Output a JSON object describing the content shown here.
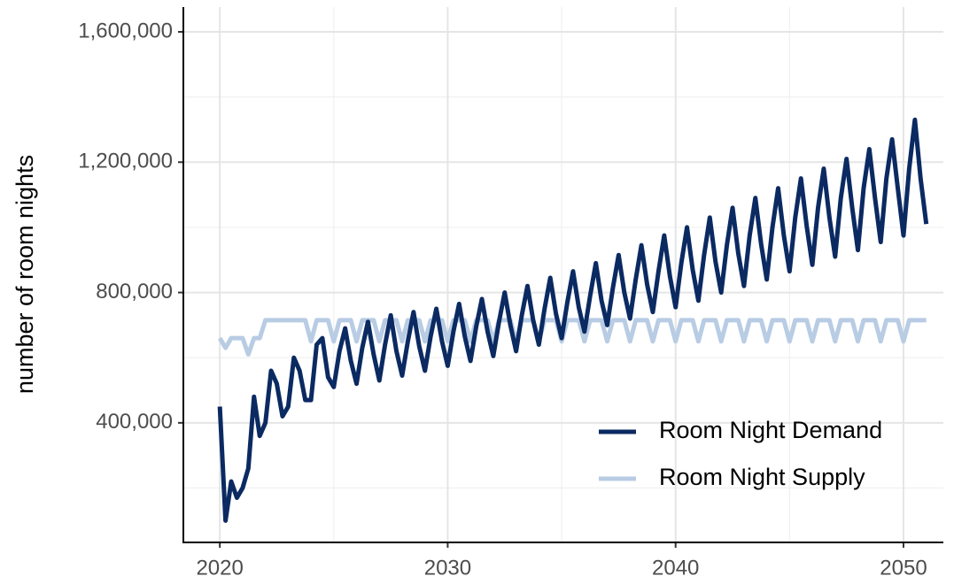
{
  "chart_data": {
    "type": "line",
    "ylabel": "number of room nights",
    "xlim": [
      2018.4,
      2051.75
    ],
    "ylim": [
      33000,
      1676000
    ],
    "xticks": [
      2020,
      2030,
      2040,
      2050
    ],
    "x_minor_ticks": [
      2025,
      2035,
      2045
    ],
    "yticks": [
      {
        "value": 400000,
        "label": "400,000"
      },
      {
        "value": 800000,
        "label": "800,000"
      },
      {
        "value": 1200000,
        "label": "1,200,000"
      },
      {
        "value": 1600000,
        "label": "1,600,000"
      }
    ],
    "y_minor_ticks": [
      200000,
      600000,
      1000000,
      1400000
    ],
    "grid": true,
    "legend": "bottom-right",
    "x": [
      2020,
      2020.25,
      2020.5,
      2020.75,
      2021,
      2021.25,
      2021.5,
      2021.75,
      2022,
      2022.25,
      2022.5,
      2022.75,
      2023,
      2023.25,
      2023.5,
      2023.75,
      2024,
      2024.25,
      2024.5,
      2024.75,
      2025,
      2025.25,
      2025.5,
      2025.75,
      2026,
      2026.25,
      2026.5,
      2026.75,
      2027,
      2027.25,
      2027.5,
      2027.75,
      2028,
      2028.25,
      2028.5,
      2028.75,
      2029,
      2029.25,
      2029.5,
      2029.75,
      2030,
      2030.25,
      2030.5,
      2030.75,
      2031,
      2031.25,
      2031.5,
      2031.75,
      2032,
      2032.25,
      2032.5,
      2032.75,
      2033,
      2033.25,
      2033.5,
      2033.75,
      2034,
      2034.25,
      2034.5,
      2034.75,
      2035,
      2035.25,
      2035.5,
      2035.75,
      2036,
      2036.25,
      2036.5,
      2036.75,
      2037,
      2037.25,
      2037.5,
      2037.75,
      2038,
      2038.25,
      2038.5,
      2038.75,
      2039,
      2039.25,
      2039.5,
      2039.75,
      2040,
      2040.25,
      2040.5,
      2040.75,
      2041,
      2041.25,
      2041.5,
      2041.75,
      2042,
      2042.25,
      2042.5,
      2042.75,
      2043,
      2043.25,
      2043.5,
      2043.75,
      2044,
      2044.25,
      2044.5,
      2044.75,
      2045,
      2045.25,
      2045.5,
      2045.75,
      2046,
      2046.25,
      2046.5,
      2046.75,
      2047,
      2047.25,
      2047.5,
      2047.75,
      2048,
      2048.25,
      2048.5,
      2048.75,
      2049,
      2049.25,
      2049.5,
      2049.75,
      2050,
      2050.25,
      2050.5,
      2050.75,
      2051
    ],
    "series": [
      {
        "name": "Room Night Demand",
        "color": "#0b2a62",
        "values": [
          450000,
          100000,
          220000,
          170000,
          200000,
          260000,
          480000,
          360000,
          400000,
          560000,
          520000,
          420000,
          450000,
          600000,
          560000,
          470000,
          470000,
          640000,
          660000,
          540000,
          510000,
          620000,
          690000,
          590000,
          520000,
          630000,
          710000,
          610000,
          530000,
          640000,
          730000,
          620000,
          545000,
          650000,
          740000,
          635000,
          560000,
          665000,
          750000,
          650000,
          575000,
          680000,
          765000,
          665000,
          590000,
          695000,
          780000,
          680000,
          605000,
          710000,
          800000,
          700000,
          620000,
          730000,
          820000,
          715000,
          640000,
          750000,
          845000,
          735000,
          660000,
          770000,
          865000,
          755000,
          680000,
          790000,
          890000,
          775000,
          700000,
          815000,
          915000,
          800000,
          720000,
          840000,
          945000,
          825000,
          740000,
          865000,
          975000,
          850000,
          755000,
          890000,
          1000000,
          870000,
          775000,
          915000,
          1030000,
          895000,
          800000,
          945000,
          1060000,
          920000,
          820000,
          975000,
          1090000,
          950000,
          840000,
          1000000,
          1120000,
          975000,
          865000,
          1030000,
          1150000,
          1005000,
          885000,
          1060000,
          1180000,
          1030000,
          910000,
          1090000,
          1210000,
          1060000,
          930000,
          1120000,
          1240000,
          1090000,
          955000,
          1150000,
          1270000,
          1120000,
          975000,
          1180000,
          1330000,
          1150000,
          1010000
        ]
      },
      {
        "name": "Room Night Supply",
        "color": "#b8cce4",
        "values": [
          660000,
          630000,
          660000,
          660000,
          660000,
          610000,
          660000,
          660000,
          715000,
          715000,
          715000,
          715000,
          715000,
          715000,
          715000,
          715000,
          650000,
          715000,
          715000,
          715000,
          650000,
          715000,
          715000,
          715000,
          650000,
          715000,
          715000,
          715000,
          650000,
          715000,
          715000,
          715000,
          650000,
          715000,
          715000,
          715000,
          650000,
          715000,
          715000,
          715000,
          650000,
          715000,
          715000,
          715000,
          650000,
          715000,
          715000,
          715000,
          650000,
          715000,
          715000,
          715000,
          650000,
          715000,
          715000,
          715000,
          650000,
          715000,
          715000,
          715000,
          650000,
          715000,
          715000,
          715000,
          650000,
          715000,
          715000,
          715000,
          650000,
          715000,
          715000,
          715000,
          650000,
          715000,
          715000,
          715000,
          650000,
          715000,
          715000,
          715000,
          650000,
          715000,
          715000,
          715000,
          650000,
          715000,
          715000,
          715000,
          650000,
          715000,
          715000,
          715000,
          650000,
          715000,
          715000,
          715000,
          650000,
          715000,
          715000,
          715000,
          650000,
          715000,
          715000,
          715000,
          650000,
          715000,
          715000,
          715000,
          650000,
          715000,
          715000,
          715000,
          650000,
          715000,
          715000,
          715000,
          650000,
          715000,
          715000,
          715000,
          650000,
          715000,
          715000,
          715000,
          715000
        ]
      }
    ]
  }
}
